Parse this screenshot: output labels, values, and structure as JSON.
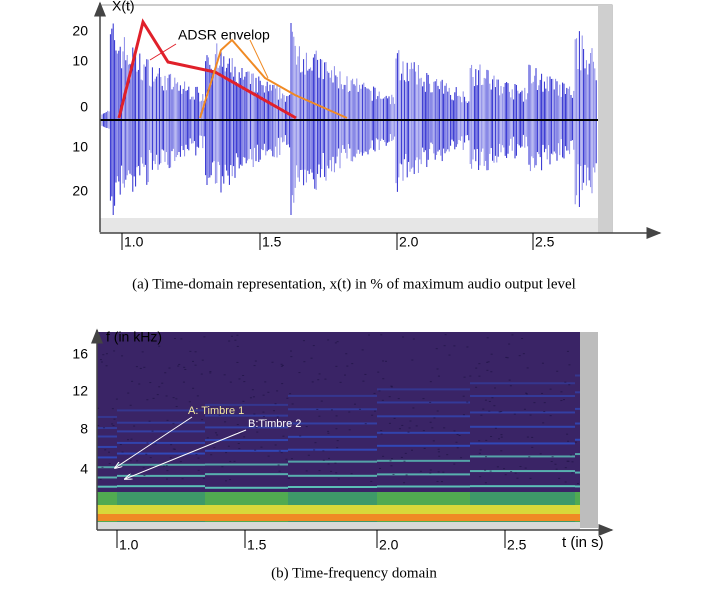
{
  "panel_a": {
    "y_axis_label": "X(t)",
    "y_ticks": [
      "20",
      "10",
      "0",
      "10",
      "20"
    ],
    "x_ticks": [
      "1.0",
      "1.5",
      "2.0",
      "2.5"
    ],
    "annotation": "ADSR envelop",
    "caption": "(a) Time-domain representation, x(t) in % of maximum audio output level"
  },
  "panel_b": {
    "y_axis_label": "f (in kHz)",
    "x_axis_label": "t (in s)",
    "y_ticks": [
      "16",
      "12",
      "8",
      "4"
    ],
    "x_ticks": [
      "1.0",
      "1.5",
      "2.0",
      "2.5"
    ],
    "annotations": [
      "A: Timbre 1",
      "B:Timbre 2"
    ],
    "caption": "(b) Time-frequency domain"
  }
}
